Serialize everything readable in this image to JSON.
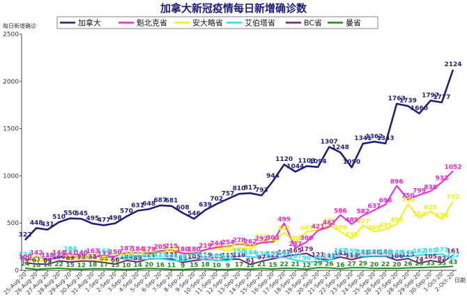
{
  "chart_data": {
    "type": "line",
    "title": "加拿大新冠疫情每日新增确诊数",
    "ylabel": "每日新增确诊",
    "xlabel": "日期",
    "ylim": [
      0,
      2500
    ],
    "yticks": [
      0,
      500,
      1000,
      1500,
      2000,
      2500
    ],
    "grid": false,
    "legend_position": "top",
    "x": [
      "25-Aug-20",
      "26-Aug-20",
      "27-Aug-20",
      "28-Aug-20",
      "29-Aug-20",
      "30-Aug-20",
      "31-Aug-20",
      "1-Sep-20",
      "2-Sep-20",
      "3-Sep-20",
      "4-Sep-20",
      "5-Sep-20",
      "6-Sep-20",
      "7-Sep-20",
      "8-Sep-20",
      "9-Sep-20",
      "10-Sep-20",
      "11-Sep-20",
      "12-Sep-20",
      "13-Sep-20",
      "14-Sep-20",
      "15-Sep-20",
      "16-Sep-20",
      "17-Sep-20",
      "18-Sep-20",
      "19-Sep-20",
      "20-Sep-20",
      "21-Sep-20",
      "22-Sep-20",
      "23-Sep-20",
      "24-Sep-20",
      "25-Sep-20",
      "26-Sep-20",
      "27-Sep-20",
      "28-Sep-20",
      "29-Sep-20",
      "30-Sep-20",
      "1-Oct-20",
      "2-Oct-20"
    ],
    "xtick_labels": [
      "25-Aug-20",
      "26-Aug-20",
      "27-Aug-20",
      "28-Aug-20",
      "29-Aug-20",
      "30-Aug-20",
      "31-Aug-20",
      "1-Sep-20",
      "2-Sep-20",
      "3-Sep-20",
      "4-Sep-20",
      "5-Sep-20",
      "6-Sep-20",
      "7-Sep-20",
      "8-Sep-20",
      "9-Sep-20",
      "10-Sep-20",
      "11-Sep-20",
      "12-Sep-20",
      "13-Sep-20",
      "14-Sep-20",
      "15-Sep-20",
      "16-Sep-20",
      "17-Sep-20",
      "18-Sep-20",
      "19-Sep-20",
      "20-Sep-20",
      "21-Sep-20",
      "22-Sep-20",
      "23-Sep-20",
      "24-Sep-20",
      "25-Sep-20",
      "26-Sep-20",
      "27-Sep-20",
      "28-Sep-20",
      "29-Sep-20",
      "30-Sep-20",
      "1-Oct-20",
      "2-Oct-20"
    ],
    "series": [
      {
        "name": "加拿大",
        "color": "#1f1f7a",
        "width": 2.6,
        "values": [
          322,
          448,
          431,
          510,
          550,
          545,
          495,
          477,
          498,
          570,
          631,
          648,
          687,
          681,
          608,
          546,
          639,
          702,
          757,
          810,
          817,
          793,
          944,
          1120,
          1044,
          1103,
          1094,
          1307,
          1248,
          1090,
          1341,
          1362,
          1343,
          1763,
          1739,
          1660,
          1797,
          1777,
          2124
        ],
        "labels": [
          322,
          448,
          431,
          510,
          550,
          545,
          495,
          477,
          498,
          570,
          631,
          648,
          687,
          681,
          608,
          546,
          639,
          702,
          757,
          810,
          817,
          793,
          944,
          1120,
          1044,
          1103,
          1094,
          1307,
          1248,
          1090,
          1341,
          1362,
          1343,
          1763,
          1739,
          1660,
          1797,
          1777,
          2124
        ]
      },
      {
        "name": "魁北克省",
        "color": "#ee22dd",
        "width": 2,
        "values": [
          100,
          142,
          118,
          144,
          141,
          140,
          163,
          133,
          150,
          187,
          184,
          179,
          205,
          215,
          180,
          180,
          219,
          244,
          254,
          278,
          262,
          292,
          303,
          499,
          237,
          300,
          421,
          462,
          586,
          489,
          582,
          637,
          698,
          896,
          750,
          799,
          838,
          933,
          1052
        ],
        "labels": [
          100,
          142,
          118,
          144,
          141,
          140,
          163,
          133,
          150,
          187,
          184,
          179,
          205,
          215,
          180,
          180,
          219,
          244,
          254,
          278,
          262,
          292,
          303,
          499,
          237,
          300,
          421,
          462,
          586,
          489,
          582,
          637,
          698,
          896,
          750,
          799,
          838,
          933,
          1052
        ]
      },
      {
        "name": "安大略省",
        "color": "#f2f20a",
        "width": 2,
        "values": [
          100,
          102,
          110,
          148,
          120,
          113,
          129,
          96,
          133,
          135,
          150,
          165,
          188,
          185,
          178,
          170,
          213,
          232,
          204,
          239,
          224,
          313,
          293,
          401,
          300,
          407,
          425,
          478,
          409,
          335,
          477,
          409,
          435,
          491,
          700,
          554,
          625,
          538,
          732
        ],
        "labels": [
          100,
          102,
          110,
          148,
          120,
          113,
          129,
          96,
          133,
          135,
          150,
          165,
          188,
          185,
          178,
          170,
          213,
          232,
          204,
          239,
          224,
          313,
          293,
          401,
          300,
          407,
          425,
          478,
          409,
          335,
          477,
          409,
          435,
          491,
          700,
          554,
          625,
          538,
          732
        ]
      },
      {
        "name": "艾伯塔省",
        "color": "#22e0ee",
        "width": 2,
        "values": [
          124,
          101,
          107,
          130,
          184,
          146,
          127,
          164,
          130,
          119,
          117,
          116,
          123,
          105,
          98,
          133,
          111,
          109,
          101,
          158,
          144,
          134,
          137,
          138,
          107,
          90,
          90,
          108,
          167,
          159,
          150,
          153,
          154,
          148,
          146,
          162,
          165,
          173,
          122
        ],
        "labels": [
          124,
          101,
          107,
          130,
          184,
          146,
          127,
          164,
          130,
          119,
          117,
          116,
          123,
          105,
          98,
          133,
          111,
          109,
          101,
          158,
          144,
          134,
          137,
          138,
          107,
          90,
          90,
          108,
          167,
          159,
          150,
          153,
          154,
          148,
          146,
          162,
          165,
          173,
          122
        ]
      },
      {
        "name": "BC省",
        "color": "#7a1a7a",
        "width": 2,
        "values": [
          80,
          67,
          64,
          100,
          89,
          98,
          98,
          83,
          66,
          104,
          89,
          121,
          123,
          121,
          83,
          103,
          119,
          105,
          115,
          119,
          61,
          97,
          122,
          147,
          165,
          179,
          121,
          111,
          141,
          113,
          143,
          148,
          149,
          106,
          125,
          74,
          105,
          82,
          161
        ],
        "labels": [
          80,
          67,
          64,
          100,
          89,
          98,
          98,
          83,
          66,
          104,
          89,
          121,
          123,
          121,
          83,
          103,
          119,
          105,
          115,
          119,
          61,
          97,
          122,
          147,
          165,
          179,
          121,
          111,
          141,
          113,
          143,
          148,
          149,
          106,
          125,
          74,
          105,
          82,
          161
        ]
      },
      {
        "name": "曼省",
        "color": "#1a8a1a",
        "width": 2,
        "values": [
          24,
          10,
          18,
          22,
          15,
          12,
          18,
          17,
          13,
          10,
          14,
          20,
          16,
          11,
          9,
          15,
          18,
          10,
          9,
          17,
          12,
          21,
          15,
          22,
          21,
          12,
          29,
          26,
          16,
          27,
          29,
          20,
          22,
          20,
          26,
          29,
          33,
          35,
          43
        ],
        "labels": [
          24,
          10,
          18,
          22,
          15,
          12,
          18,
          17,
          13,
          10,
          14,
          20,
          16,
          11,
          9,
          15,
          18,
          10,
          9,
          17,
          12,
          21,
          15,
          22,
          21,
          12,
          29,
          26,
          16,
          27,
          29,
          20,
          22,
          20,
          26,
          29,
          33,
          35,
          43
        ]
      }
    ]
  }
}
